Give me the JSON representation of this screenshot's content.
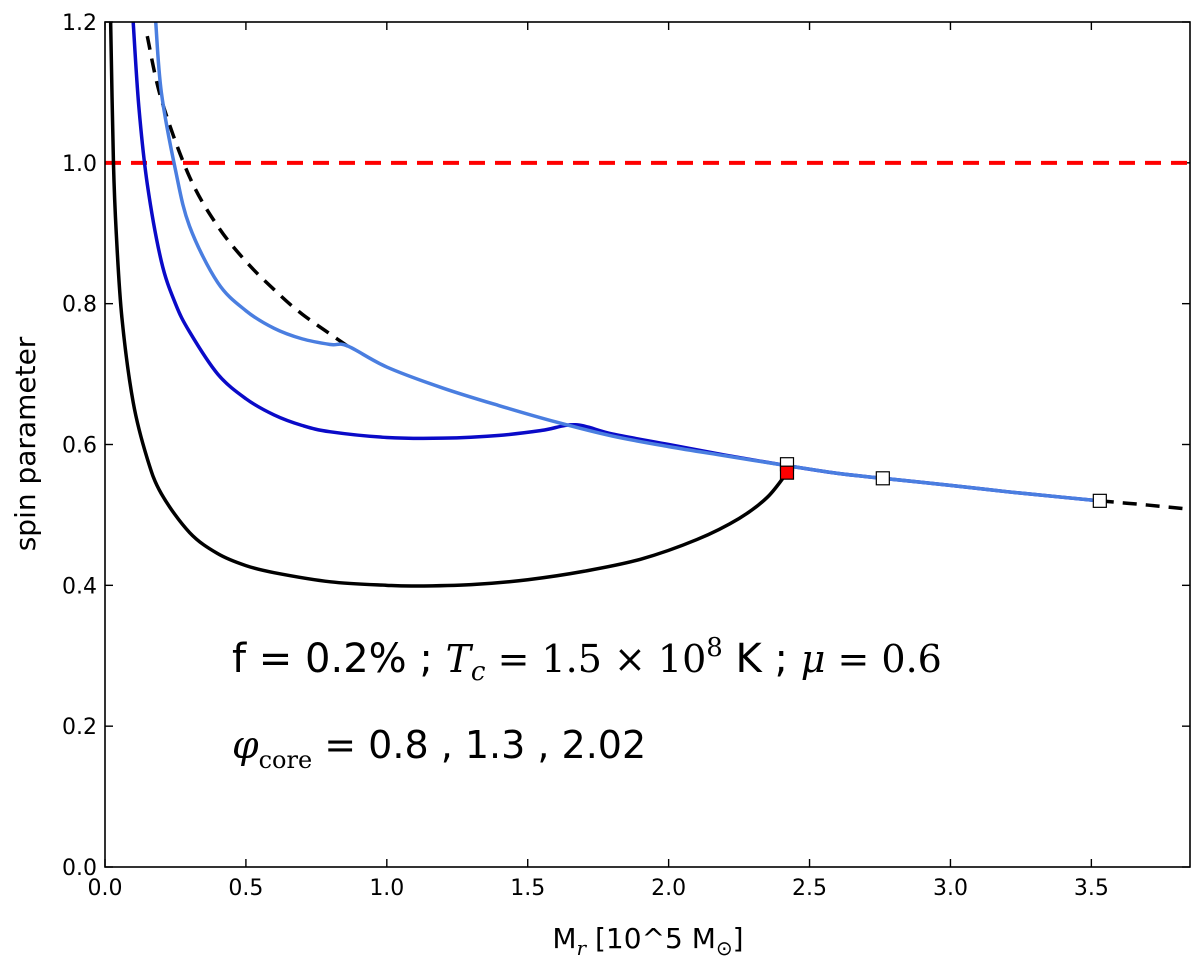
{
  "chart_data": {
    "type": "line",
    "xlabel": "M_r [10^5 M_⊙]",
    "ylabel": "spin parameter",
    "xlim": [
      0.0,
      3.85
    ],
    "ylim": [
      0.0,
      1.2
    ],
    "xticks": [
      "0.0",
      "0.5",
      "1.0",
      "1.5",
      "2.0",
      "2.5",
      "3.0",
      "3.5"
    ],
    "yticks": [
      "0.0",
      "0.2",
      "0.4",
      "0.6",
      "0.8",
      "1.0",
      "1.2"
    ],
    "grid": false,
    "reference_line": {
      "y": 1.0,
      "color": "#ff0000",
      "style": "dashed"
    },
    "envelope": {
      "color": "#000000",
      "style": "dashed",
      "x": [
        0.15,
        0.2,
        0.3,
        0.4,
        0.5,
        0.6,
        0.7,
        0.86
      ],
      "y": [
        1.18,
        1.09,
        0.98,
        0.91,
        0.86,
        0.82,
        0.785,
        0.74
      ]
    },
    "envelope_tail": {
      "color": "#000000",
      "style": "dashed",
      "x": [
        3.53,
        3.7,
        3.85
      ],
      "y": [
        0.52,
        0.514,
        0.508
      ]
    },
    "series": [
      {
        "color": "#000000",
        "x": [
          0.02,
          0.03,
          0.04,
          0.06,
          0.1,
          0.15,
          0.2,
          0.3,
          0.4,
          0.5,
          0.6,
          0.8,
          1.0,
          1.1,
          1.3,
          1.5,
          1.7,
          1.9,
          2.1,
          2.25,
          2.35,
          2.42
        ],
        "y": [
          1.2,
          1.0,
          0.9,
          0.78,
          0.66,
          0.58,
          0.53,
          0.475,
          0.445,
          0.428,
          0.418,
          0.405,
          0.4,
          0.399,
          0.401,
          0.408,
          0.42,
          0.437,
          0.465,
          0.495,
          0.525,
          0.56
        ]
      },
      {
        "color": "#0a0ac8",
        "x": [
          0.1,
          0.12,
          0.15,
          0.2,
          0.25,
          0.3,
          0.4,
          0.5,
          0.6,
          0.7,
          0.8,
          1.0,
          1.2,
          1.4,
          1.55,
          1.67,
          1.8,
          2.0,
          2.2,
          2.42,
          2.6,
          2.76,
          3.0,
          3.2,
          3.4,
          3.53
        ],
        "y": [
          1.2,
          1.08,
          0.97,
          0.86,
          0.8,
          0.76,
          0.7,
          0.665,
          0.642,
          0.627,
          0.618,
          0.61,
          0.609,
          0.613,
          0.62,
          0.628,
          0.615,
          0.6,
          0.585,
          0.57,
          0.559,
          0.552,
          0.542,
          0.533,
          0.525,
          0.52
        ]
      },
      {
        "color": "#4a7ee0",
        "x": [
          0.18,
          0.2,
          0.25,
          0.3,
          0.4,
          0.5,
          0.6,
          0.7,
          0.8,
          0.86,
          1.0,
          1.2,
          1.4,
          1.6,
          1.8,
          2.0,
          2.2,
          2.42,
          2.6,
          2.76,
          3.0,
          3.2,
          3.4,
          3.53
        ],
        "y": [
          1.2,
          1.1,
          0.99,
          0.91,
          0.83,
          0.79,
          0.765,
          0.75,
          0.742,
          0.74,
          0.71,
          0.68,
          0.655,
          0.632,
          0.612,
          0.597,
          0.584,
          0.57,
          0.559,
          0.552,
          0.542,
          0.533,
          0.525,
          0.52
        ]
      }
    ],
    "markers": [
      {
        "x": 2.42,
        "y": 0.572,
        "fill": "#ffffff"
      },
      {
        "x": 2.76,
        "y": 0.552,
        "fill": "#ffffff"
      },
      {
        "x": 3.53,
        "y": 0.52,
        "fill": "#ffffff"
      },
      {
        "x": 2.42,
        "y": 0.56,
        "fill": "#ff0000"
      }
    ]
  },
  "annotation": {
    "line1_a": "f = 0.2% ; ",
    "line1_b": "T",
    "line1_c": "c",
    "line1_d": " = 1.5 × 10",
    "line1_e": "8",
    "line1_f": " K ; ",
    "line1_g": "μ",
    "line1_h": " = 0.6",
    "line2_a": "φ",
    "line2_b": "core",
    "line2_c": " = 0.8 , 1.3 , 2.02"
  },
  "labels": {
    "ylabel": "spin parameter",
    "xlabel_a": "M",
    "xlabel_b": "r",
    "xlabel_c": " [10^5 M",
    "xlabel_d": "⊙",
    "xlabel_e": "]"
  }
}
